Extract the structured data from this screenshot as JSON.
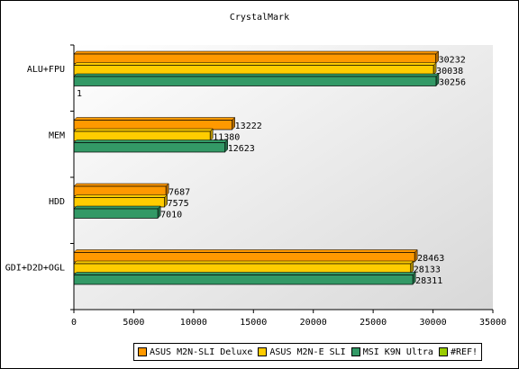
{
  "chart_data": {
    "type": "bar",
    "orientation": "horizontal",
    "title": "CrystalMark",
    "categories": [
      "ALU+FPU",
      "MEM",
      "HDD",
      "GDI+D2D+OGL"
    ],
    "series": [
      {
        "name": "ASUS M2N-SLI Deluxe",
        "color": "#ff9900",
        "values": [
          30232,
          13222,
          7687,
          28463
        ]
      },
      {
        "name": "ASUS M2N-E SLI",
        "color": "#ffcc00",
        "values": [
          30038,
          11380,
          7575,
          28133
        ]
      },
      {
        "name": "MSI K9N Ultra",
        "color": "#339966",
        "values": [
          30256,
          12623,
          7010,
          28311
        ]
      },
      {
        "name": "#REF!",
        "color": "#99cc00",
        "values": [
          1,
          null,
          null,
          null
        ]
      }
    ],
    "xlim": [
      0,
      35000
    ],
    "xticks": [
      "0",
      "5000",
      "10000",
      "15000",
      "20000",
      "25000",
      "30000",
      "35000"
    ],
    "grid": false,
    "legend_position": "bottom",
    "background": "gradient white-to-gray"
  }
}
